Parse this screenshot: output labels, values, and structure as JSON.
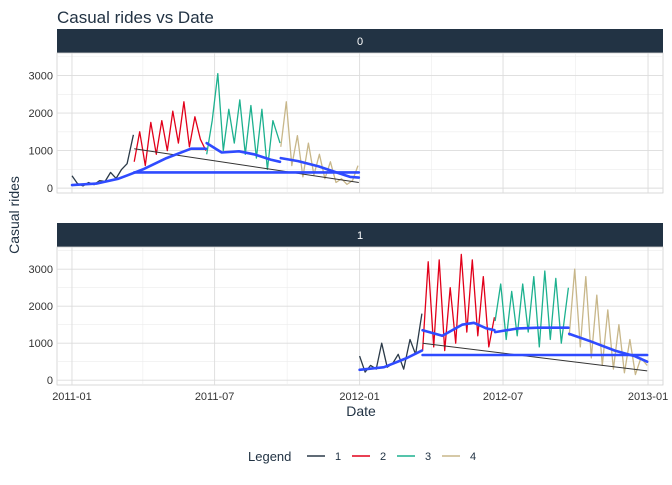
{
  "chart_data": {
    "type": "line",
    "title": "Casual rides vs Date",
    "xlabel": "Date",
    "ylabel": "Casual rides",
    "x_ticks": [
      "2011-01",
      "2011-07",
      "2012-01",
      "2012-07",
      "2013-01"
    ],
    "xlim": [
      "2010-12-13",
      "2013-01-20"
    ],
    "y_ticks": [
      0,
      1000,
      2000,
      3000
    ],
    "ylim": [
      -130,
      3600
    ],
    "grid": true,
    "legend": {
      "title": "Legend",
      "placement": "bottom",
      "entries": [
        {
          "label": "1",
          "color": "#2b3a48"
        },
        {
          "label": "2",
          "color": "#e2001a"
        },
        {
          "label": "3",
          "color": "#1db18f"
        },
        {
          "label": "4",
          "color": "#c8b78a"
        }
      ]
    },
    "smooth_color": "#2f4bff",
    "strip_color": "#223344",
    "panels": [
      {
        "strip_label": "0",
        "series": [
          {
            "name": "1",
            "x": [
              "2011-01-01",
              "2011-01-08",
              "2011-01-15",
              "2011-01-22",
              "2011-01-29",
              "2011-02-05",
              "2011-02-12",
              "2011-02-19",
              "2011-02-26",
              "2011-03-05",
              "2011-03-12",
              "2011-03-20"
            ],
            "y": [
              330,
              120,
              60,
              150,
              90,
              200,
              180,
              420,
              260,
              500,
              650,
              1420
            ]
          },
          {
            "name": "2",
            "x": [
              "2011-03-21",
              "2011-03-28",
              "2011-04-04",
              "2011-04-11",
              "2011-04-18",
              "2011-04-25",
              "2011-05-02",
              "2011-05-09",
              "2011-05-16",
              "2011-05-23",
              "2011-05-30",
              "2011-06-06",
              "2011-06-13",
              "2011-06-20"
            ],
            "y": [
              700,
              1500,
              600,
              1750,
              900,
              1800,
              1000,
              2050,
              1200,
              2300,
              1100,
              1900,
              1300,
              1000
            ]
          },
          {
            "name": "3",
            "x": [
              "2011-06-21",
              "2011-06-28",
              "2011-07-05",
              "2011-07-12",
              "2011-07-19",
              "2011-07-26",
              "2011-08-02",
              "2011-08-09",
              "2011-08-16",
              "2011-08-23",
              "2011-08-30",
              "2011-09-06",
              "2011-09-13",
              "2011-09-22"
            ],
            "y": [
              900,
              1800,
              3050,
              1000,
              2100,
              1200,
              2350,
              900,
              2200,
              800,
              2100,
              500,
              1800,
              1200
            ]
          },
          {
            "name": "4",
            "x": [
              "2011-09-23",
              "2011-09-30",
              "2011-10-07",
              "2011-10-14",
              "2011-10-21",
              "2011-10-28",
              "2011-11-04",
              "2011-11-11",
              "2011-11-18",
              "2011-11-25",
              "2011-12-02",
              "2011-12-09",
              "2011-12-16",
              "2011-12-23",
              "2011-12-30"
            ],
            "y": [
              1100,
              2300,
              600,
              1400,
              300,
              1200,
              350,
              900,
              250,
              700,
              150,
              250,
              100,
              200,
              600
            ]
          }
        ],
        "trend": {
          "x": [
            "2011-03-21",
            "2011-12-31"
          ],
          "y": [
            1050,
            150
          ]
        },
        "smooth": [
          {
            "x": [
              "2011-01-01",
              "2011-02-01",
              "2011-03-01",
              "2011-04-01",
              "2011-05-01",
              "2011-06-01",
              "2011-06-20"
            ],
            "y": [
              80,
              120,
              250,
              500,
              800,
              1050,
              1050
            ]
          },
          {
            "x": [
              "2011-06-21",
              "2011-07-10",
              "2011-08-01",
              "2011-08-20",
              "2011-09-10",
              "2011-09-22"
            ],
            "y": [
              1200,
              950,
              980,
              900,
              760,
              700
            ]
          },
          {
            "x": [
              "2011-09-23",
              "2011-10-15",
              "2011-11-10",
              "2011-12-01",
              "2011-12-20",
              "2011-12-31"
            ],
            "y": [
              800,
              720,
              580,
              430,
              300,
              280
            ]
          },
          {
            "x": [
              "2011-03-21",
              "2011-12-31"
            ],
            "y": [
              420,
              420
            ]
          }
        ]
      },
      {
        "strip_label": "1",
        "series": [
          {
            "name": "1",
            "x": [
              "2012-01-01",
              "2012-01-08",
              "2012-01-15",
              "2012-01-22",
              "2012-01-29",
              "2012-02-05",
              "2012-02-12",
              "2012-02-19",
              "2012-02-26",
              "2012-03-05",
              "2012-03-12",
              "2012-03-20"
            ],
            "y": [
              650,
              220,
              400,
              300,
              1000,
              350,
              450,
              700,
              300,
              1100,
              700,
              1800
            ]
          },
          {
            "name": "2",
            "x": [
              "2012-03-21",
              "2012-03-28",
              "2012-04-04",
              "2012-04-11",
              "2012-04-18",
              "2012-04-25",
              "2012-05-02",
              "2012-05-09",
              "2012-05-16",
              "2012-05-23",
              "2012-05-30",
              "2012-06-06",
              "2012-06-13",
              "2012-06-20"
            ],
            "y": [
              800,
              3200,
              900,
              3250,
              800,
              2500,
              1000,
              3400,
              1300,
              3250,
              1200,
              2800,
              900,
              1700
            ]
          },
          {
            "name": "3",
            "x": [
              "2012-06-21",
              "2012-06-28",
              "2012-07-05",
              "2012-07-12",
              "2012-07-19",
              "2012-07-26",
              "2012-08-02",
              "2012-08-09",
              "2012-08-16",
              "2012-08-23",
              "2012-08-30",
              "2012-09-06",
              "2012-09-13",
              "2012-09-22"
            ],
            "y": [
              1600,
              2600,
              1100,
              2400,
              1200,
              2600,
              1300,
              2800,
              900,
              2950,
              1100,
              2750,
              1000,
              2500
            ]
          },
          {
            "name": "4",
            "x": [
              "2012-09-23",
              "2012-09-30",
              "2012-10-07",
              "2012-10-14",
              "2012-10-21",
              "2012-10-28",
              "2012-11-04",
              "2012-11-11",
              "2012-11-18",
              "2012-11-25",
              "2012-12-02",
              "2012-12-09",
              "2012-12-16",
              "2012-12-23",
              "2012-12-31"
            ],
            "y": [
              1200,
              3000,
              900,
              2800,
              600,
              2300,
              400,
              1900,
              300,
              1500,
              200,
              1100,
              150,
              600,
              400
            ]
          }
        ],
        "trend": {
          "x": [
            "2012-03-21",
            "2012-12-31"
          ],
          "y": [
            1000,
            250
          ]
        },
        "smooth": [
          {
            "x": [
              "2012-01-01",
              "2012-02-01",
              "2012-03-01",
              "2012-03-20"
            ],
            "y": [
              280,
              350,
              600,
              800
            ]
          },
          {
            "x": [
              "2012-03-21",
              "2012-04-15",
              "2012-05-10",
              "2012-05-25",
              "2012-06-10",
              "2012-06-20"
            ],
            "y": [
              1350,
              1200,
              1500,
              1550,
              1400,
              1350
            ]
          },
          {
            "x": [
              "2012-06-21",
              "2012-07-20",
              "2012-08-15",
              "2012-09-22"
            ],
            "y": [
              1300,
              1400,
              1420,
              1420
            ]
          },
          {
            "x": [
              "2012-09-23",
              "2012-10-20",
              "2012-11-20",
              "2012-12-15",
              "2012-12-31"
            ],
            "y": [
              1250,
              1050,
              800,
              650,
              500
            ]
          },
          {
            "x": [
              "2012-03-21",
              "2012-12-31"
            ],
            "y": [
              680,
              680
            ]
          }
        ]
      }
    ]
  }
}
